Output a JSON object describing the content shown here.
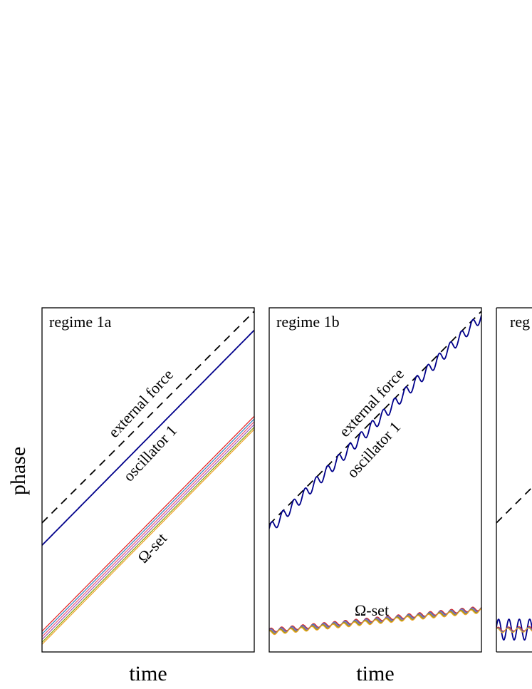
{
  "figure": {
    "ylabel": "phase",
    "xlabel": "time"
  },
  "chart_data": [
    {
      "type": "line",
      "title": "regime 1a",
      "xlabel": "time",
      "ylabel": "phase",
      "xlim": [
        0,
        1
      ],
      "ylim": [
        0,
        1
      ],
      "grid": false,
      "annotations": [
        "external force",
        "oscillator 1",
        "Ω-set"
      ],
      "series": [
        {
          "name": "external force",
          "color": "#000000",
          "dash": true,
          "x": [
            0,
            1
          ],
          "y": [
            0.375,
            0.99
          ],
          "wiggle_amp": 0,
          "wiggle_cycles": 0
        },
        {
          "name": "oscillator 1",
          "color": "#00008b",
          "dash": false,
          "x": [
            0,
            1
          ],
          "y": [
            0.31,
            0.935
          ],
          "wiggle_amp": 0,
          "wiggle_cycles": 0
        },
        {
          "name": "",
          "color": "#e41a1c",
          "dash": false,
          "x": [
            0,
            1
          ],
          "y": [
            0.06,
            0.685
          ],
          "wiggle_amp": 0,
          "wiggle_cycles": 0
        },
        {
          "name": "",
          "color": "#377eb8",
          "dash": false,
          "x": [
            0,
            1
          ],
          "y": [
            0.052,
            0.677
          ],
          "wiggle_amp": 0,
          "wiggle_cycles": 0
        },
        {
          "name": "",
          "color": "#e75480",
          "dash": false,
          "x": [
            0,
            1
          ],
          "y": [
            0.044,
            0.669
          ],
          "wiggle_amp": 0,
          "wiggle_cycles": 0
        },
        {
          "name": "",
          "color": "#a05ab4",
          "dash": false,
          "x": [
            0,
            1
          ],
          "y": [
            0.036,
            0.661
          ],
          "wiggle_amp": 0,
          "wiggle_cycles": 0
        },
        {
          "name": "",
          "color": "#8aa000",
          "dash": false,
          "x": [
            0,
            1
          ],
          "y": [
            0.028,
            0.653
          ],
          "wiggle_amp": 0,
          "wiggle_cycles": 0
        },
        {
          "name": "",
          "color": "#f0a020",
          "dash": false,
          "x": [
            0,
            1
          ],
          "y": [
            0.022,
            0.647
          ],
          "wiggle_amp": 0,
          "wiggle_cycles": 0
        }
      ]
    },
    {
      "type": "line",
      "title": "regime 1b",
      "xlabel": "time",
      "ylabel": "phase",
      "xlim": [
        0,
        1
      ],
      "ylim": [
        0,
        1
      ],
      "grid": false,
      "annotations": [
        "external force",
        "oscillator 1",
        "Ω-set"
      ],
      "series": [
        {
          "name": "external force",
          "color": "#000000",
          "dash": true,
          "x": [
            0,
            1
          ],
          "y": [
            0.37,
            0.99
          ],
          "wiggle_amp": 0,
          "wiggle_cycles": 0
        },
        {
          "name": "oscillator 1",
          "color": "#00008b",
          "dash": false,
          "x": [
            0,
            1
          ],
          "y": [
            0.355,
            0.975
          ],
          "wiggle_amp": 0.016,
          "wiggle_cycles": 19
        },
        {
          "name": "",
          "color": "#e41a1c",
          "dash": false,
          "x": [
            0,
            1
          ],
          "y": [
            0.063,
            0.127
          ],
          "wiggle_amp": 0.006,
          "wiggle_cycles": 20
        },
        {
          "name": "",
          "color": "#377eb8",
          "dash": false,
          "x": [
            0,
            1
          ],
          "y": [
            0.061,
            0.125
          ],
          "wiggle_amp": 0.006,
          "wiggle_cycles": 20
        },
        {
          "name": "",
          "color": "#a05ab4",
          "dash": false,
          "x": [
            0,
            1
          ],
          "y": [
            0.059,
            0.123
          ],
          "wiggle_amp": 0.006,
          "wiggle_cycles": 20
        },
        {
          "name": "",
          "color": "#8aa000",
          "dash": false,
          "x": [
            0,
            1
          ],
          "y": [
            0.057,
            0.121
          ],
          "wiggle_amp": 0.006,
          "wiggle_cycles": 20
        },
        {
          "name": "",
          "color": "#f0a020",
          "dash": false,
          "x": [
            0,
            1
          ],
          "y": [
            0.055,
            0.119
          ],
          "wiggle_amp": 0.006,
          "wiggle_cycles": 20
        }
      ]
    },
    {
      "type": "line",
      "title": "reg",
      "xlabel": "",
      "ylabel": "",
      "xlim": [
        0,
        0.17
      ],
      "ylim": [
        0,
        1
      ],
      "grid": false,
      "annotations": [],
      "series": [
        {
          "name": "external force",
          "color": "#000000",
          "dash": true,
          "x": [
            0,
            0.17
          ],
          "y": [
            0.375,
            0.48
          ],
          "wiggle_amp": 0,
          "wiggle_cycles": 0
        },
        {
          "name": "oscillator 1",
          "color": "#00008b",
          "dash": false,
          "x": [
            0,
            0.17
          ],
          "y": [
            0.065,
            0.065
          ],
          "wiggle_amp": 0.03,
          "wiggle_cycles": 3.5
        },
        {
          "name": "",
          "color": "#e41a1c",
          "dash": false,
          "x": [
            0,
            0.17
          ],
          "y": [
            0.066,
            0.068
          ],
          "wiggle_amp": 0.006,
          "wiggle_cycles": 3.5
        },
        {
          "name": "",
          "color": "#377eb8",
          "dash": false,
          "x": [
            0,
            0.17
          ],
          "y": [
            0.064,
            0.066
          ],
          "wiggle_amp": 0.006,
          "wiggle_cycles": 3.5
        },
        {
          "name": "",
          "color": "#f0a020",
          "dash": false,
          "x": [
            0,
            0.17
          ],
          "y": [
            0.062,
            0.064
          ],
          "wiggle_amp": 0.006,
          "wiggle_cycles": 3.5
        }
      ]
    }
  ]
}
